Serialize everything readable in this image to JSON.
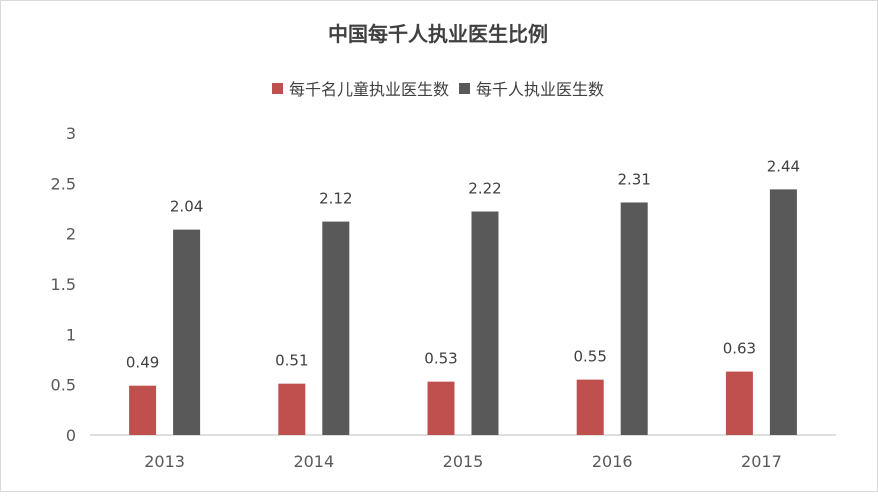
{
  "colors": {
    "series1": "#c0504d",
    "series2": "#595959",
    "axis": "#bfbfbf"
  },
  "chart_data": {
    "type": "bar",
    "title": "中国每千人执业医生比例",
    "categories": [
      "2013",
      "2014",
      "2015",
      "2016",
      "2017"
    ],
    "series": [
      {
        "name": "每千名儿童执业医生数",
        "values": [
          0.49,
          0.51,
          0.53,
          0.55,
          0.63
        ]
      },
      {
        "name": "每千人执业医生数",
        "values": [
          2.04,
          2.12,
          2.22,
          2.31,
          2.44
        ]
      }
    ],
    "y_ticks": [
      "0",
      "0.5",
      "1",
      "1.5",
      "2",
      "2.5",
      "3"
    ],
    "ylim": [
      0,
      3
    ],
    "grid": false,
    "legend": "top-center",
    "xlabel": "",
    "ylabel": ""
  }
}
